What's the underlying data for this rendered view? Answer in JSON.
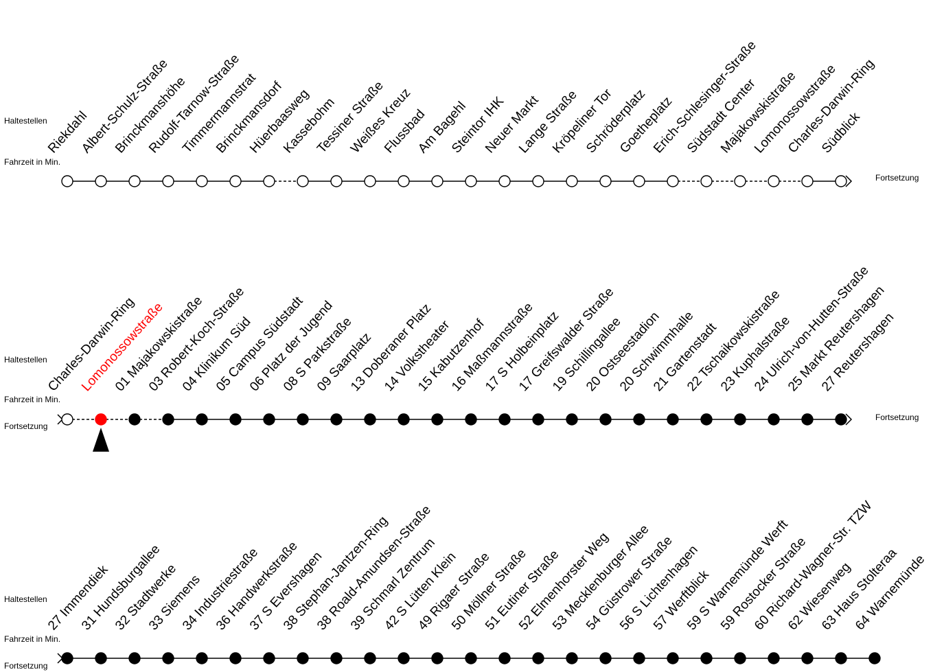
{
  "labels": {
    "stops": "Haltestellen",
    "time": "Fahrzeit in Min.",
    "continuation": "Fortsetzung"
  },
  "colors": {
    "line": "#000000",
    "passed": "#ffffff",
    "upcoming": "#000000",
    "current": "#ff0000"
  },
  "rows": [
    {
      "start_marker": "dot",
      "show_continuation_left": false,
      "show_continuation_right": true,
      "end_arrow": true,
      "stops": [
        {
          "name": "Riekdahl",
          "time": "",
          "state": "passed"
        },
        {
          "name": "Albert-Schulz-Straße",
          "time": "",
          "state": "passed"
        },
        {
          "name": "Brinckmanshöhe",
          "time": "",
          "state": "passed"
        },
        {
          "name": "Rudolf-Tarnow-Straße",
          "time": "",
          "state": "passed"
        },
        {
          "name": "Timmermannstrat",
          "time": "",
          "state": "passed"
        },
        {
          "name": "Brinckmansdorf",
          "time": "",
          "state": "passed"
        },
        {
          "name": "Hüerbaasweg",
          "time": "",
          "state": "passed"
        },
        {
          "name": "Kassebohm",
          "time": "",
          "state": "passed"
        },
        {
          "name": "Tessiner Straße",
          "time": "",
          "state": "passed"
        },
        {
          "name": "Weißes Kreuz",
          "time": "",
          "state": "passed"
        },
        {
          "name": "Flussbad",
          "time": "",
          "state": "passed"
        },
        {
          "name": "Am Bagehl",
          "time": "",
          "state": "passed"
        },
        {
          "name": "Steintor IHK",
          "time": "",
          "state": "passed"
        },
        {
          "name": "Neuer Markt",
          "time": "",
          "state": "passed"
        },
        {
          "name": "Lange Straße",
          "time": "",
          "state": "passed"
        },
        {
          "name": "Kröpeliner Tor",
          "time": "",
          "state": "passed"
        },
        {
          "name": "Schröderplatz",
          "time": "",
          "state": "passed"
        },
        {
          "name": "Goetheplatz",
          "time": "",
          "state": "passed"
        },
        {
          "name": "Erich-Schlesinger-Straße",
          "time": "",
          "state": "passed"
        },
        {
          "name": "Südstadt Center",
          "time": "",
          "state": "passed"
        },
        {
          "name": "Majakowskistraße",
          "time": "",
          "state": "passed"
        },
        {
          "name": "Lomonossowstraße",
          "time": "",
          "state": "passed"
        },
        {
          "name": "Charles-Darwin-Ring",
          "time": "",
          "state": "passed"
        },
        {
          "name": "Südblick",
          "time": "",
          "state": "passed"
        }
      ],
      "segments": [
        "solid",
        "solid",
        "solid",
        "solid",
        "solid",
        "solid",
        "dashed",
        "solid",
        "solid",
        "solid",
        "solid",
        "solid",
        "solid",
        "solid",
        "solid",
        "solid",
        "solid",
        "solid",
        "dashed",
        "dashed",
        "dashed",
        "dashed",
        "solid"
      ]
    },
    {
      "start_marker": "arrow",
      "show_continuation_left": true,
      "show_continuation_right": true,
      "end_arrow": true,
      "stops": [
        {
          "name": "Charles-Darwin-Ring",
          "time": "",
          "state": "passed"
        },
        {
          "name": "Lomonossowstraße",
          "time": "",
          "state": "current"
        },
        {
          "name": "Majakowskistraße",
          "time": "01",
          "state": "upcoming"
        },
        {
          "name": "Robert-Koch-Straße",
          "time": "03",
          "state": "upcoming"
        },
        {
          "name": "Klinikum Süd",
          "time": "04",
          "state": "upcoming"
        },
        {
          "name": "Campus Südstadt",
          "time": "05",
          "state": "upcoming"
        },
        {
          "name": "Platz der Jugend",
          "time": "06",
          "state": "upcoming"
        },
        {
          "name": "S Parkstraße",
          "time": "08",
          "state": "upcoming"
        },
        {
          "name": "Saarplatz",
          "time": "09",
          "state": "upcoming"
        },
        {
          "name": "Doberaner Platz",
          "time": "13",
          "state": "upcoming"
        },
        {
          "name": "Volkstheater",
          "time": "14",
          "state": "upcoming"
        },
        {
          "name": "Kabutzenhof",
          "time": "15",
          "state": "upcoming"
        },
        {
          "name": "Maßmannstraße",
          "time": "16",
          "state": "upcoming"
        },
        {
          "name": "S Holbeinplatz",
          "time": "17",
          "state": "upcoming"
        },
        {
          "name": "Greifswalder Straße",
          "time": "17",
          "state": "upcoming"
        },
        {
          "name": "Schillingallee",
          "time": "19",
          "state": "upcoming"
        },
        {
          "name": "Ostseestadion",
          "time": "20",
          "state": "upcoming"
        },
        {
          "name": "Schwimmhalle",
          "time": "20",
          "state": "upcoming"
        },
        {
          "name": "Gartenstadt",
          "time": "21",
          "state": "upcoming"
        },
        {
          "name": "Tschaikowskistraße",
          "time": "22",
          "state": "upcoming"
        },
        {
          "name": "Kuphalstraße",
          "time": "23",
          "state": "upcoming"
        },
        {
          "name": "Ulrich-von-Hutten-Straße",
          "time": "24",
          "state": "upcoming"
        },
        {
          "name": "Markt Reutershagen",
          "time": "25",
          "state": "upcoming"
        },
        {
          "name": "Reutershagen",
          "time": "27",
          "state": "upcoming"
        }
      ],
      "segments": [
        "dashed",
        "dashed",
        "dashed",
        "solid",
        "solid",
        "solid",
        "solid",
        "solid",
        "solid",
        "solid",
        "solid",
        "solid",
        "solid",
        "solid",
        "solid",
        "solid",
        "solid",
        "solid",
        "solid",
        "solid",
        "solid",
        "solid",
        "solid"
      ],
      "current_pointer_index": 1
    },
    {
      "start_marker": "arrow",
      "show_continuation_left": true,
      "show_continuation_right": false,
      "end_arrow": false,
      "stops": [
        {
          "name": "Immendiek",
          "time": "27",
          "state": "upcoming"
        },
        {
          "name": "Hundsburgallee",
          "time": "31",
          "state": "upcoming"
        },
        {
          "name": "Stadtwerke",
          "time": "32",
          "state": "upcoming"
        },
        {
          "name": "Siemens",
          "time": "33",
          "state": "upcoming"
        },
        {
          "name": "Industriestraße",
          "time": "34",
          "state": "upcoming"
        },
        {
          "name": "Handwerkstraße",
          "time": "36",
          "state": "upcoming"
        },
        {
          "name": "S Evershagen",
          "time": "37",
          "state": "upcoming"
        },
        {
          "name": "Stephan-Jantzen-Ring",
          "time": "38",
          "state": "upcoming"
        },
        {
          "name": "Roald-Amundsen-Straße",
          "time": "38",
          "state": "upcoming"
        },
        {
          "name": "Schmarl Zentrum",
          "time": "39",
          "state": "upcoming"
        },
        {
          "name": "S Lütten Klein",
          "time": "42",
          "state": "upcoming"
        },
        {
          "name": "Rigaer Straße",
          "time": "49",
          "state": "upcoming"
        },
        {
          "name": "Möllner Straße",
          "time": "50",
          "state": "upcoming"
        },
        {
          "name": "Eutiner Straße",
          "time": "51",
          "state": "upcoming"
        },
        {
          "name": "Elmenhorster Weg",
          "time": "52",
          "state": "upcoming"
        },
        {
          "name": "Mecklenburger Allee",
          "time": "53",
          "state": "upcoming"
        },
        {
          "name": "Güstrower Straße",
          "time": "54",
          "state": "upcoming"
        },
        {
          "name": "S Lichtenhagen",
          "time": "56",
          "state": "upcoming"
        },
        {
          "name": "Werftblick",
          "time": "57",
          "state": "upcoming"
        },
        {
          "name": "S Warnemünde Werft",
          "time": "59",
          "state": "upcoming"
        },
        {
          "name": "Rostocker Straße",
          "time": "59",
          "state": "upcoming"
        },
        {
          "name": "Richard-Wagner-Str. TZW",
          "time": "60",
          "state": "upcoming"
        },
        {
          "name": "Wiesenweg",
          "time": "62",
          "state": "upcoming"
        },
        {
          "name": "Haus Stolteraa",
          "time": "63",
          "state": "upcoming"
        },
        {
          "name": "Warnemünde",
          "time": "64",
          "state": "upcoming"
        }
      ],
      "segments": [
        "solid",
        "solid",
        "solid",
        "solid",
        "solid",
        "solid",
        "solid",
        "solid",
        "solid",
        "solid",
        "solid",
        "solid",
        "solid",
        "solid",
        "solid",
        "solid",
        "solid",
        "solid",
        "solid",
        "solid",
        "solid",
        "solid",
        "solid",
        "solid"
      ]
    }
  ]
}
